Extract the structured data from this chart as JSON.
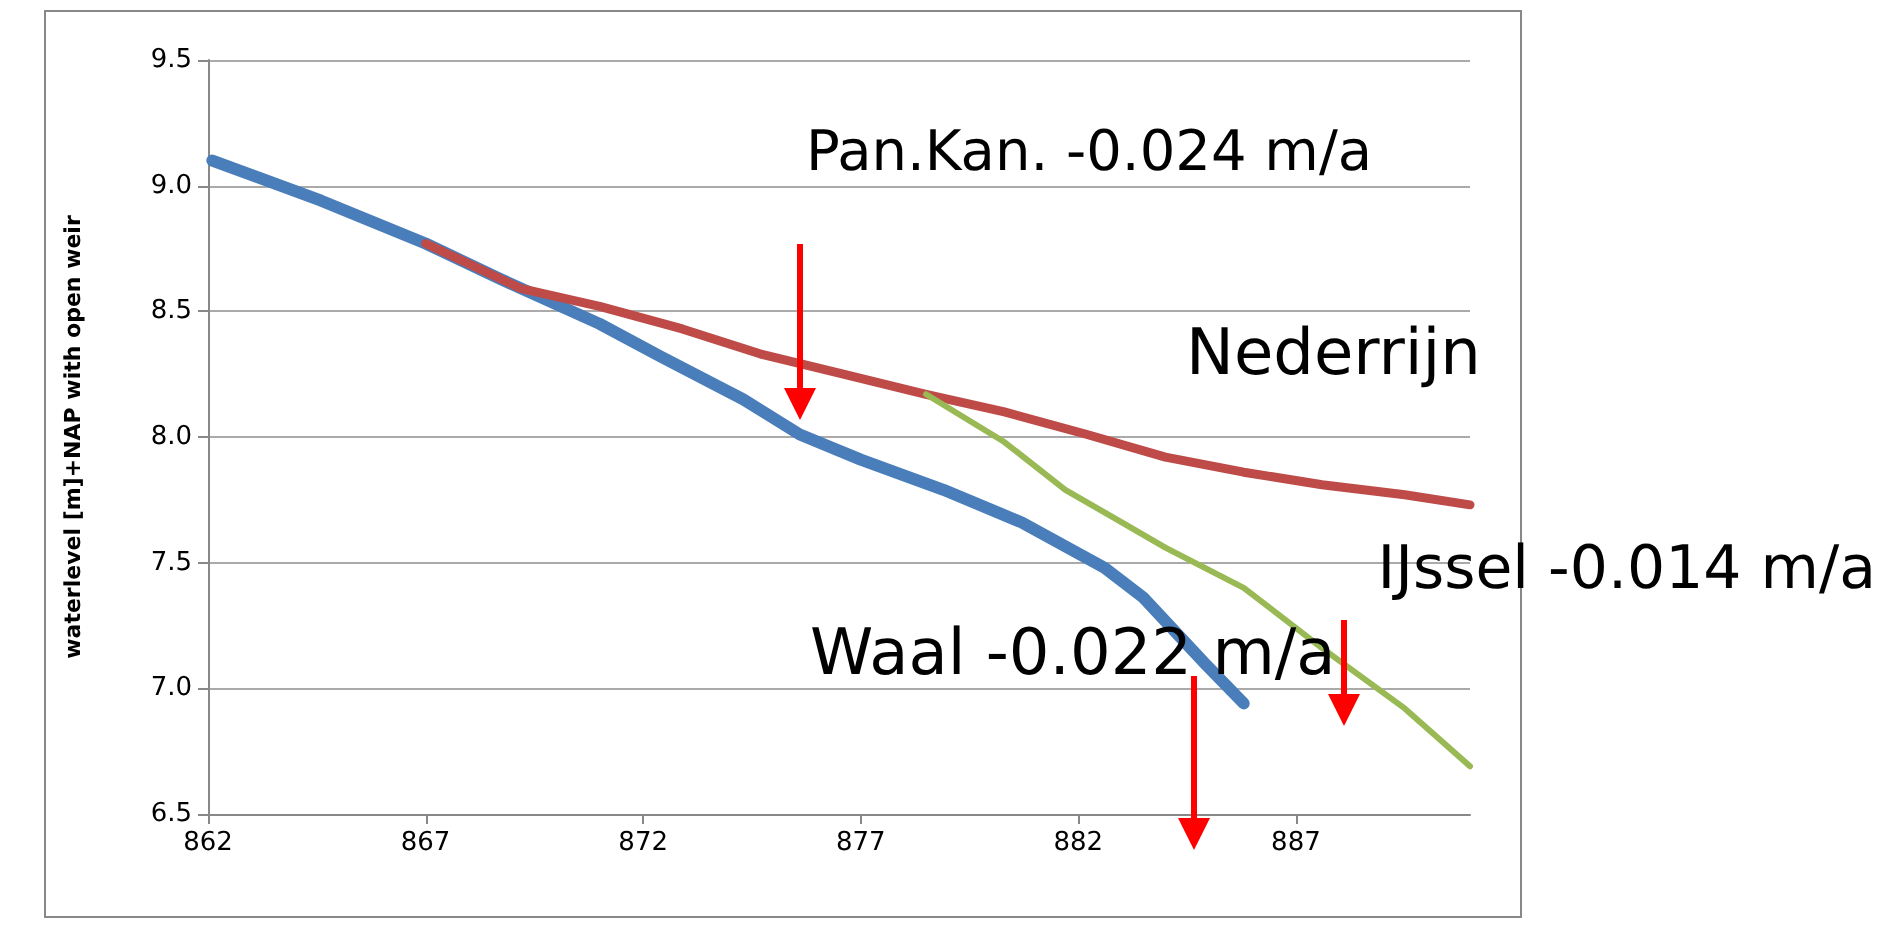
{
  "chart_data": {
    "type": "line",
    "ylabel": "waterlevel [m]+NAP with open weir",
    "xlim": [
      862,
      891
    ],
    "xticks": [
      862,
      867,
      872,
      877,
      882,
      887
    ],
    "ylim": [
      6.5,
      9.5
    ],
    "yticks": [
      6.5,
      {
        "value": 7,
        "label": "7.0"
      },
      7.5,
      {
        "value": 8,
        "label": "8.0"
      },
      8.5,
      {
        "value": 9,
        "label": "9.0"
      },
      9.5
    ],
    "grid": "y",
    "marker": "none",
    "line_style": "solid",
    "series": [
      {
        "color": "#4a7ebb",
        "x": [
          862.1,
          864.6,
          867,
          868.7,
          871,
          872.4,
          874.3,
          875.6,
          877,
          878.9,
          880.7,
          882.6,
          883.5,
          884.9,
          885.8
        ],
        "values": [
          9.1,
          8.94,
          8.77,
          8.63,
          8.45,
          8.32,
          8.15,
          8.01,
          7.91,
          7.79,
          7.66,
          7.48,
          7.36,
          7.1,
          6.94
        ]
      },
      {
        "color": "#be4b48",
        "x": [
          867,
          869.2,
          871,
          872.9,
          874.7,
          876.6,
          878.5,
          880.3,
          882.2,
          884,
          885.8,
          887.6,
          889.5,
          891
        ],
        "values": [
          8.77,
          8.59,
          8.52,
          8.43,
          8.33,
          8.25,
          8.17,
          8.1,
          8.01,
          7.92,
          7.86,
          7.81,
          7.77,
          7.73
        ]
      },
      {
        "color": "#98b954",
        "x": [
          878.5,
          880.3,
          881.7,
          882.8,
          884,
          885.8,
          887.6,
          889.5,
          891
        ],
        "values": [
          8.17,
          7.98,
          7.79,
          7.68,
          7.56,
          7.4,
          7.16,
          6.92,
          6.69
        ]
      }
    ],
    "annotations": [
      "Pan.Kan. -0.024 m/a",
      "Nederrijn",
      "IJssel -0.014 m/a",
      "Waal -0.022 m/a"
    ]
  }
}
